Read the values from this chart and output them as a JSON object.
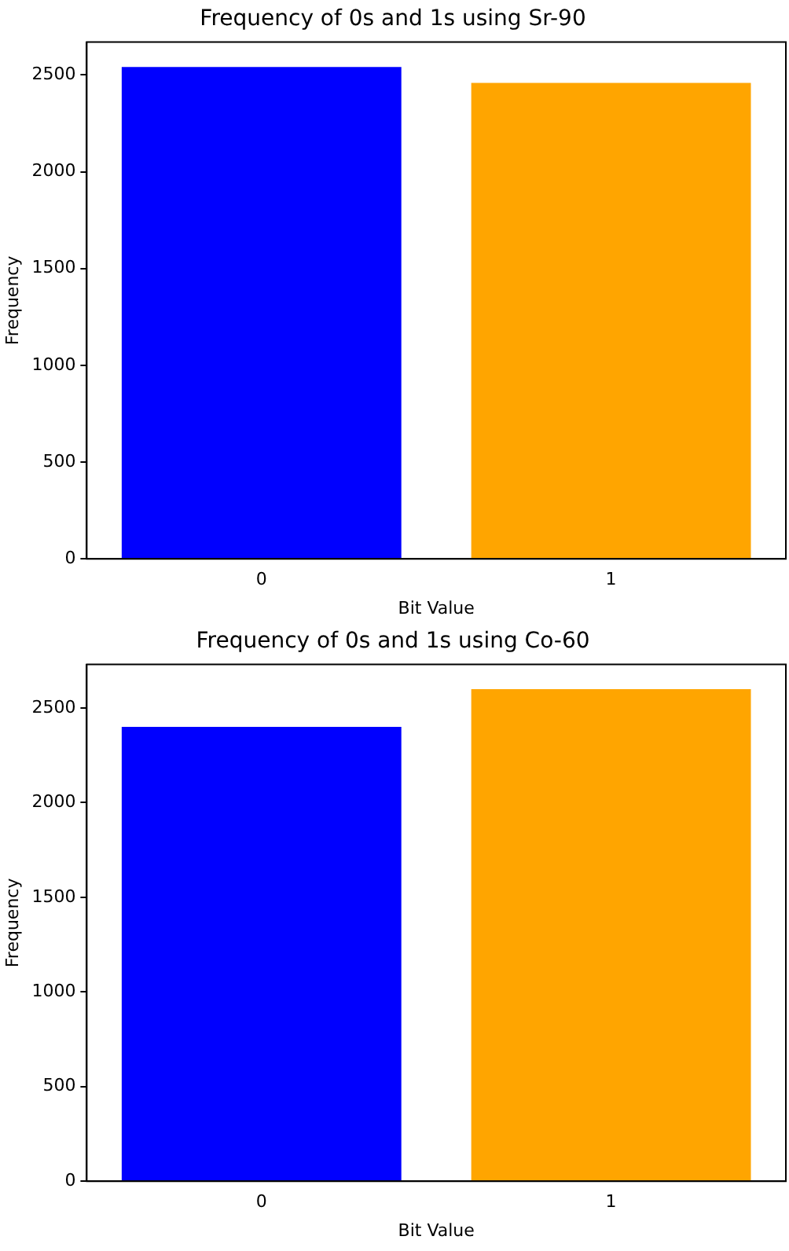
{
  "chart_data": [
    {
      "type": "bar",
      "title": "Frequency of 0s and 1s using Sr-90",
      "xlabel": "Bit Value",
      "ylabel": "Frequency",
      "categories": [
        "0",
        "1"
      ],
      "values": [
        2541,
        2459
      ],
      "colors": [
        "#0000ff",
        "#ffa500"
      ],
      "ylim": [
        0,
        2670
      ],
      "yticks": [
        0,
        500,
        1000,
        1500,
        2000,
        2500
      ],
      "grid": false,
      "legend": false
    },
    {
      "type": "bar",
      "title": "Frequency of 0s and 1s using Co-60",
      "xlabel": "Bit Value",
      "ylabel": "Frequency",
      "categories": [
        "0",
        "1"
      ],
      "values": [
        2400,
        2600
      ],
      "colors": [
        "#0000ff",
        "#ffa500"
      ],
      "ylim": [
        0,
        2730
      ],
      "yticks": [
        0,
        500,
        1000,
        1500,
        2000,
        2500
      ],
      "grid": false,
      "legend": false
    }
  ]
}
